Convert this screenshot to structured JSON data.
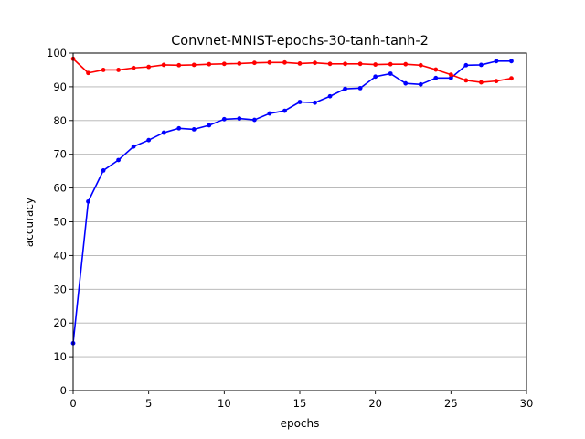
{
  "chart_data": {
    "type": "line",
    "title": "Convnet-MNIST-epochs-30-tanh-tanh-2",
    "xlabel": "epochs",
    "ylabel": "accuracy",
    "xlim": [
      0,
      30
    ],
    "ylim": [
      0,
      100
    ],
    "xticks": [
      0,
      5,
      10,
      15,
      20,
      25,
      30
    ],
    "yticks": [
      0,
      10,
      20,
      30,
      40,
      50,
      60,
      70,
      80,
      90,
      100
    ],
    "grid": "horizontal",
    "legend": "none",
    "x": [
      0,
      1,
      2,
      3,
      4,
      5,
      6,
      7,
      8,
      9,
      10,
      11,
      12,
      13,
      14,
      15,
      16,
      17,
      18,
      19,
      20,
      21,
      22,
      23,
      24,
      25,
      26,
      27,
      28,
      29
    ],
    "series": [
      {
        "color": "#0000ff",
        "values": [
          14.0,
          56.0,
          65.2,
          68.3,
          72.3,
          74.2,
          76.4,
          77.7,
          77.4,
          78.6,
          80.4,
          80.6,
          80.2,
          82.1,
          82.9,
          85.5,
          85.3,
          87.2,
          89.4,
          89.6,
          93.0,
          93.9,
          91.0,
          90.7,
          92.6,
          92.6,
          96.4,
          96.5,
          97.6,
          97.6
        ]
      },
      {
        "color": "#ff0000",
        "values": [
          98.3,
          94.1,
          95.0,
          95.0,
          95.6,
          95.9,
          96.5,
          96.4,
          96.5,
          96.7,
          96.8,
          96.9,
          97.1,
          97.2,
          97.2,
          96.9,
          97.1,
          96.8,
          96.8,
          96.8,
          96.6,
          96.7,
          96.7,
          96.4,
          95.1,
          93.6,
          91.9,
          91.3,
          91.7,
          92.5
        ]
      }
    ]
  }
}
